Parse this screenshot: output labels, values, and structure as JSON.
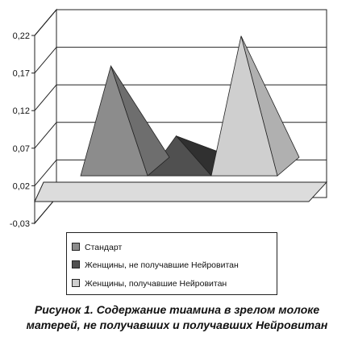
{
  "chart_data": {
    "type": "area",
    "subtype": "3d-pyramid",
    "categories": [
      "",
      "",
      ""
    ],
    "y_ticks": [
      "0,22",
      "0,17",
      "0,12",
      "0,07",
      "0,02",
      "-0,03"
    ],
    "ylim": [
      -0.03,
      0.22
    ],
    "grid": true,
    "legend_position": "bottom",
    "series": [
      {
        "name": "Стандарт",
        "value": 0.145,
        "color": "#8c8c8c",
        "side_color": "#6e6e6e"
      },
      {
        "name": "Женщины, не получавшие Нейровитан",
        "value": 0.052,
        "color": "#505050",
        "side_color": "#303030"
      },
      {
        "name": "Женщины, получавшие Нейровитан",
        "value": 0.185,
        "color": "#cfcfcf",
        "side_color": "#b0b0b0"
      }
    ]
  },
  "caption": {
    "line1": "Рисунок 1. Содержание тиамина в зрелом молоке",
    "line2": "матерей, не получавших и получавших Нейровитан"
  }
}
